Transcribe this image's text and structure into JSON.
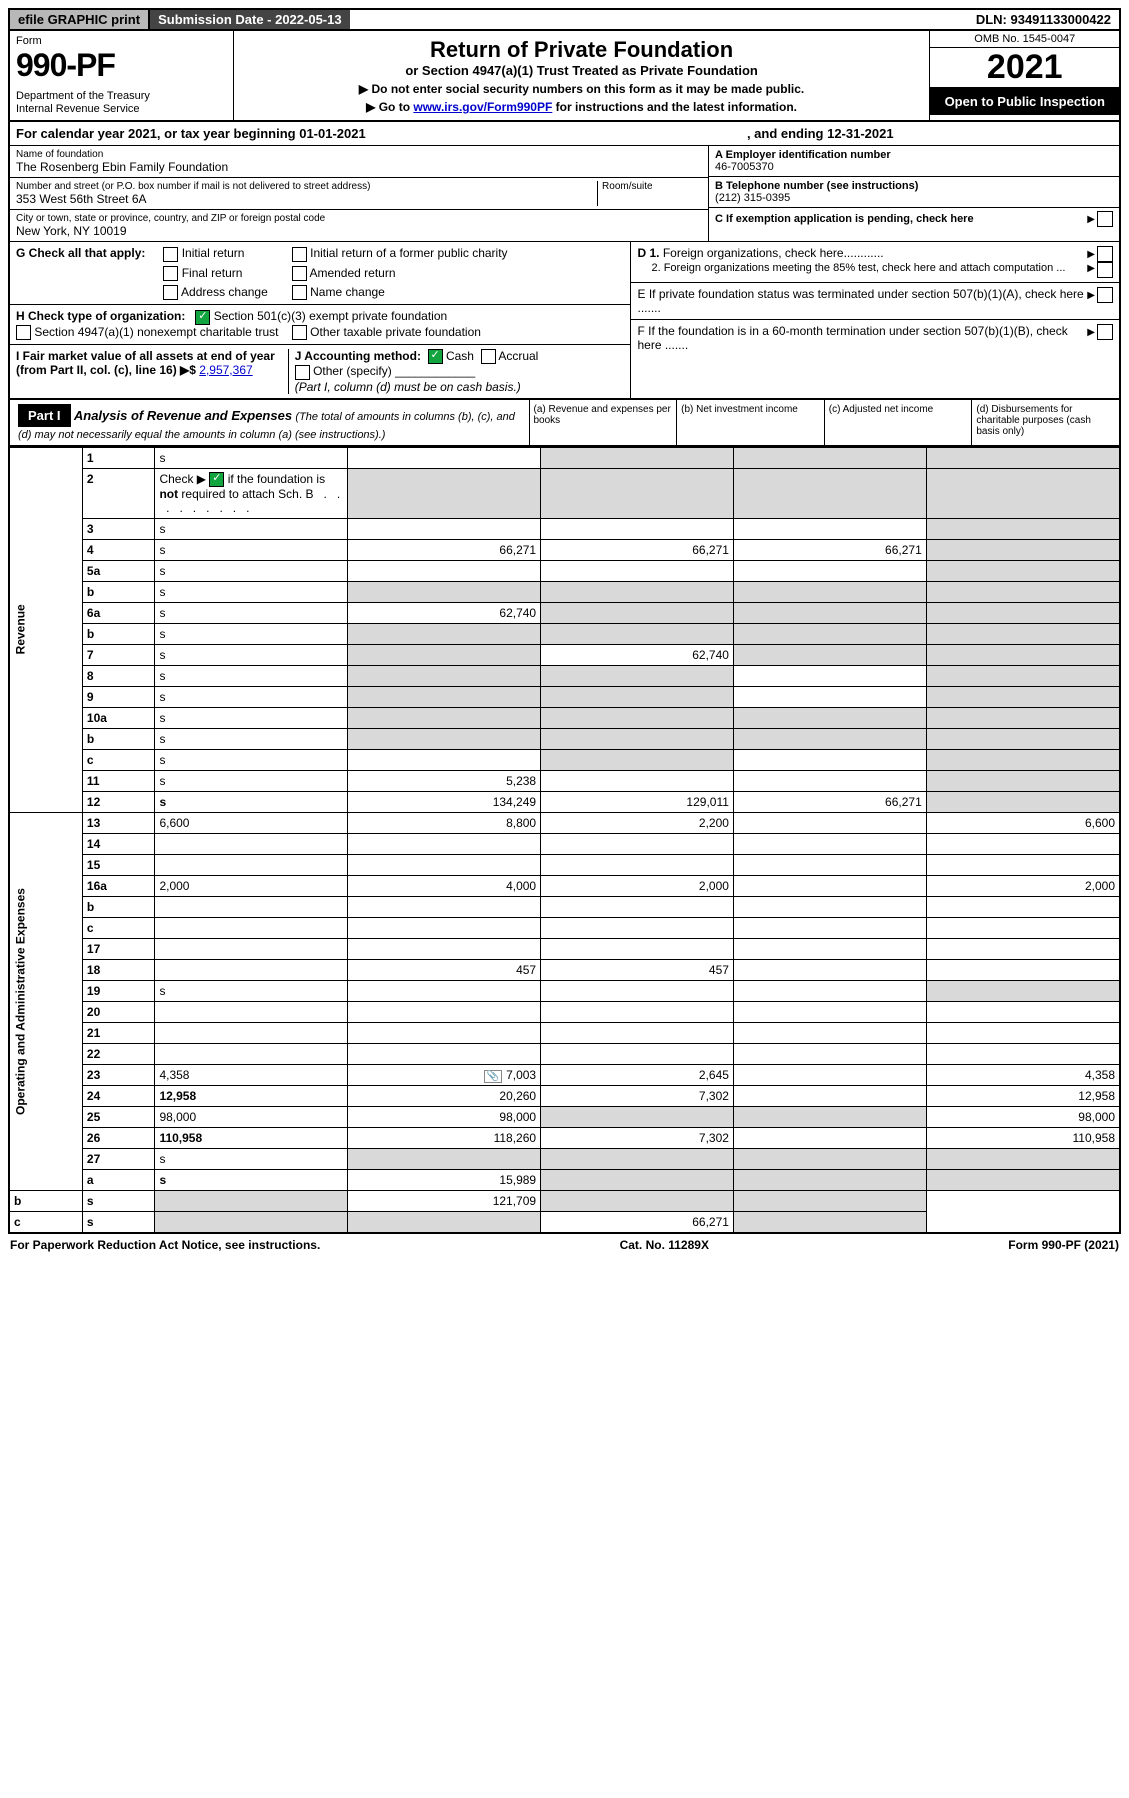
{
  "header_bar": {
    "efile": "efile GRAPHIC print",
    "submission": "Submission Date - 2022-05-13",
    "dln": "DLN: 93491133000422"
  },
  "top": {
    "form_label": "Form",
    "form_no": "990-PF",
    "dept": "Department of the Treasury\nInternal Revenue Service",
    "title": "Return of Private Foundation",
    "subtitle": "or Section 4947(a)(1) Trust Treated as Private Foundation",
    "note1": "▶ Do not enter social security numbers on this form as it may be made public.",
    "note2_pre": "▶ Go to ",
    "note2_link": "www.irs.gov/Form990PF",
    "note2_post": " for instructions and the latest information.",
    "omb": "OMB No. 1545-0047",
    "year": "2021",
    "open": "Open to Public Inspection"
  },
  "calendar": {
    "text_a": "For calendar year 2021, or tax year beginning 01-01-2021",
    "text_b": ", and ending 12-31-2021"
  },
  "name_block": {
    "name_label": "Name of foundation",
    "name": "The Rosenberg Ebin Family Foundation",
    "addr_label": "Number and street (or P.O. box number if mail is not delivered to street address)",
    "addr": "353 West 56th Street 6A",
    "room_label": "Room/suite",
    "city_label": "City or town, state or province, country, and ZIP or foreign postal code",
    "city": "New York, NY  10019"
  },
  "right_block": {
    "A_label": "A Employer identification number",
    "A_val": "46-7005370",
    "B_label": "B Telephone number (see instructions)",
    "B_val": "(212) 315-0395",
    "C_label": "C If exemption application is pending, check here",
    "D1": "D 1. Foreign organizations, check here............",
    "D2": "2. Foreign organizations meeting the 85% test, check here and attach computation ...",
    "E": "E  If private foundation status was terminated under section 507(b)(1)(A), check here .......",
    "F": "F  If the foundation is in a 60-month termination under section 507(b)(1)(B), check here .......",
    "arrow": "▶"
  },
  "G": {
    "label": "G Check all that apply:",
    "opts": [
      "Initial return",
      "Final return",
      "Address change",
      "Initial return of a former public charity",
      "Amended return",
      "Name change"
    ]
  },
  "H": {
    "label": "H Check type of organization:",
    "opt1": "Section 501(c)(3) exempt private foundation",
    "opt2": "Section 4947(a)(1) nonexempt charitable trust",
    "opt3": "Other taxable private foundation"
  },
  "I": {
    "label": "I Fair market value of all assets at end of year (from Part II, col. (c), line 16) ▶$ ",
    "val": "2,957,367"
  },
  "J": {
    "label": "J Accounting method:",
    "cash": "Cash",
    "accrual": "Accrual",
    "other": "Other (specify)",
    "note": "(Part I, column (d) must be on cash basis.)"
  },
  "part1": {
    "label": "Part I",
    "title": "Analysis of Revenue and Expenses",
    "note": "(The total of amounts in columns (b), (c), and (d) may not necessarily equal the amounts in column (a) (see instructions).)",
    "cols": {
      "a": "(a)  Revenue and expenses per books",
      "b": "(b)  Net investment income",
      "c": "(c)  Adjusted net income",
      "d": "(d)  Disbursements for charitable purposes (cash basis only)"
    }
  },
  "side_labels": {
    "rev": "Revenue",
    "exp": "Operating and Administrative Expenses"
  },
  "rows": [
    {
      "n": "1",
      "d": "s",
      "a": "",
      "b": "s",
      "c": "s"
    },
    {
      "n": "2",
      "d": "s",
      "a": "s",
      "b": "s",
      "c": "s",
      "checked": true
    },
    {
      "n": "3",
      "d": "s",
      "a": "",
      "b": "",
      "c": ""
    },
    {
      "n": "4",
      "d": "s",
      "a": "66,271",
      "b": "66,271",
      "c": "66,271"
    },
    {
      "n": "5a",
      "d": "s",
      "a": "",
      "b": "",
      "c": ""
    },
    {
      "n": "b",
      "d": "s",
      "a": "s",
      "b": "s",
      "c": "s"
    },
    {
      "n": "6a",
      "d": "s",
      "a": "62,740",
      "b": "s",
      "c": "s"
    },
    {
      "n": "b",
      "d": "s",
      "a": "s",
      "b": "s",
      "c": "s"
    },
    {
      "n": "7",
      "d": "s",
      "a": "s",
      "b": "62,740",
      "c": "s"
    },
    {
      "n": "8",
      "d": "s",
      "a": "s",
      "b": "s",
      "c": ""
    },
    {
      "n": "9",
      "d": "s",
      "a": "s",
      "b": "s",
      "c": ""
    },
    {
      "n": "10a",
      "d": "s",
      "a": "s",
      "b": "s",
      "c": "s"
    },
    {
      "n": "b",
      "d": "s",
      "a": "s",
      "b": "s",
      "c": "s"
    },
    {
      "n": "c",
      "d": "s",
      "a": "",
      "b": "s",
      "c": ""
    },
    {
      "n": "11",
      "d": "s",
      "a": "5,238",
      "b": "",
      "c": ""
    },
    {
      "n": "12",
      "d": "s",
      "a": "134,249",
      "b": "129,011",
      "c": "66,271",
      "bold": true
    },
    {
      "n": "13",
      "d": "6,600",
      "a": "8,800",
      "b": "2,200",
      "c": ""
    },
    {
      "n": "14",
      "d": "",
      "a": "",
      "b": "",
      "c": ""
    },
    {
      "n": "15",
      "d": "",
      "a": "",
      "b": "",
      "c": ""
    },
    {
      "n": "16a",
      "d": "2,000",
      "a": "4,000",
      "b": "2,000",
      "c": ""
    },
    {
      "n": "b",
      "d": "",
      "a": "",
      "b": "",
      "c": ""
    },
    {
      "n": "c",
      "d": "",
      "a": "",
      "b": "",
      "c": ""
    },
    {
      "n": "17",
      "d": "",
      "a": "",
      "b": "",
      "c": ""
    },
    {
      "n": "18",
      "d": "",
      "a": "457",
      "b": "457",
      "c": ""
    },
    {
      "n": "19",
      "d": "s",
      "a": "",
      "b": "",
      "c": ""
    },
    {
      "n": "20",
      "d": "",
      "a": "",
      "b": "",
      "c": ""
    },
    {
      "n": "21",
      "d": "",
      "a": "",
      "b": "",
      "c": ""
    },
    {
      "n": "22",
      "d": "",
      "a": "",
      "b": "",
      "c": ""
    },
    {
      "n": "23",
      "d": "4,358",
      "a": "7,003",
      "b": "2,645",
      "c": "",
      "icon": true
    },
    {
      "n": "24",
      "d": "12,958",
      "a": "20,260",
      "b": "7,302",
      "c": "",
      "bold": true
    },
    {
      "n": "25",
      "d": "98,000",
      "a": "98,000",
      "b": "s",
      "c": "s"
    },
    {
      "n": "26",
      "d": "110,958",
      "a": "118,260",
      "b": "7,302",
      "c": "",
      "bold": true
    },
    {
      "n": "27",
      "d": "s",
      "a": "s",
      "b": "s",
      "c": "s"
    },
    {
      "n": "a",
      "d": "s",
      "a": "15,989",
      "b": "s",
      "c": "s",
      "bold": true
    },
    {
      "n": "b",
      "d": "s",
      "a": "s",
      "b": "121,709",
      "c": "s",
      "bold": true
    },
    {
      "n": "c",
      "d": "s",
      "a": "s",
      "b": "s",
      "c": "66,271",
      "bold": true
    }
  ],
  "footer": {
    "left": "For Paperwork Reduction Act Notice, see instructions.",
    "mid": "Cat. No. 11289X",
    "right": "Form 990-PF (2021)"
  }
}
